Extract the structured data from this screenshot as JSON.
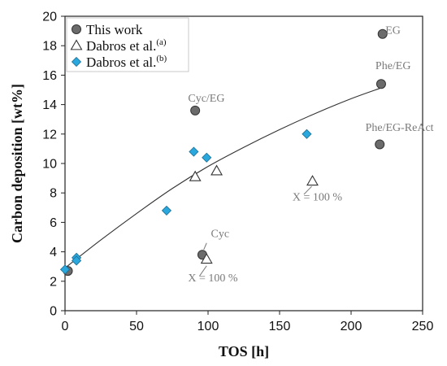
{
  "chart_data": {
    "type": "scatter",
    "xlabel": "TOS [h]",
    "ylabel": "Carbon deposition [wt%]",
    "xlim": [
      0,
      250
    ],
    "ylim": [
      0,
      20
    ],
    "xticks": [
      0,
      50,
      100,
      150,
      200,
      250
    ],
    "yticks": [
      0,
      2,
      4,
      6,
      8,
      10,
      12,
      14,
      16,
      18,
      20
    ],
    "legend_position": "top-left",
    "series": [
      {
        "name": "This work",
        "marker": "circle",
        "color": "#6b6b6b",
        "points": [
          {
            "x": 2,
            "y": 2.7
          },
          {
            "x": 96,
            "y": 3.8
          },
          {
            "x": 91,
            "y": 13.6
          },
          {
            "x": 220,
            "y": 11.3
          },
          {
            "x": 221,
            "y": 15.4
          },
          {
            "x": 222,
            "y": 18.8
          }
        ]
      },
      {
        "name": "Dabros et al.",
        "name_sup": "(a)",
        "marker": "triangle-open",
        "color": "#333333",
        "points": [
          {
            "x": 91,
            "y": 9.1
          },
          {
            "x": 106,
            "y": 9.5
          },
          {
            "x": 99,
            "y": 3.5
          },
          {
            "x": 173,
            "y": 8.8
          }
        ]
      },
      {
        "name": "Dabros et al.",
        "name_sup": "(b)",
        "marker": "diamond",
        "color": "#2aa7dc",
        "points": [
          {
            "x": 0,
            "y": 2.8
          },
          {
            "x": 8,
            "y": 3.6
          },
          {
            "x": 8,
            "y": 3.4
          },
          {
            "x": 71,
            "y": 6.8
          },
          {
            "x": 90,
            "y": 10.8
          },
          {
            "x": 99,
            "y": 10.4
          },
          {
            "x": 169,
            "y": 12.0
          }
        ]
      }
    ],
    "trendline": {
      "color": "#333333",
      "points": [
        {
          "x": 0,
          "y": 2.9
        },
        {
          "x": 25,
          "y": 4.8
        },
        {
          "x": 50,
          "y": 6.6
        },
        {
          "x": 75,
          "y": 8.3
        },
        {
          "x": 100,
          "y": 9.8
        },
        {
          "x": 125,
          "y": 11.1
        },
        {
          "x": 150,
          "y": 12.3
        },
        {
          "x": 175,
          "y": 13.4
        },
        {
          "x": 200,
          "y": 14.4
        },
        {
          "x": 220,
          "y": 15.1
        }
      ]
    },
    "annotations": [
      {
        "text": "EG",
        "x": 224,
        "y": 18.8
      },
      {
        "text": "Phe/EG",
        "x": 217,
        "y": 16.4
      },
      {
        "text": "Phe/EG-ReAct",
        "x": 210,
        "y": 12.2
      },
      {
        "text": "Cyc/EG",
        "x": 86,
        "y": 14.2
      },
      {
        "text": "Cyc",
        "x": 102,
        "y": 5.0
      },
      {
        "text": "X = 100 %",
        "x": 86,
        "y": 2.0
      },
      {
        "text": "X = 100 %",
        "x": 159,
        "y": 7.5
      }
    ]
  }
}
